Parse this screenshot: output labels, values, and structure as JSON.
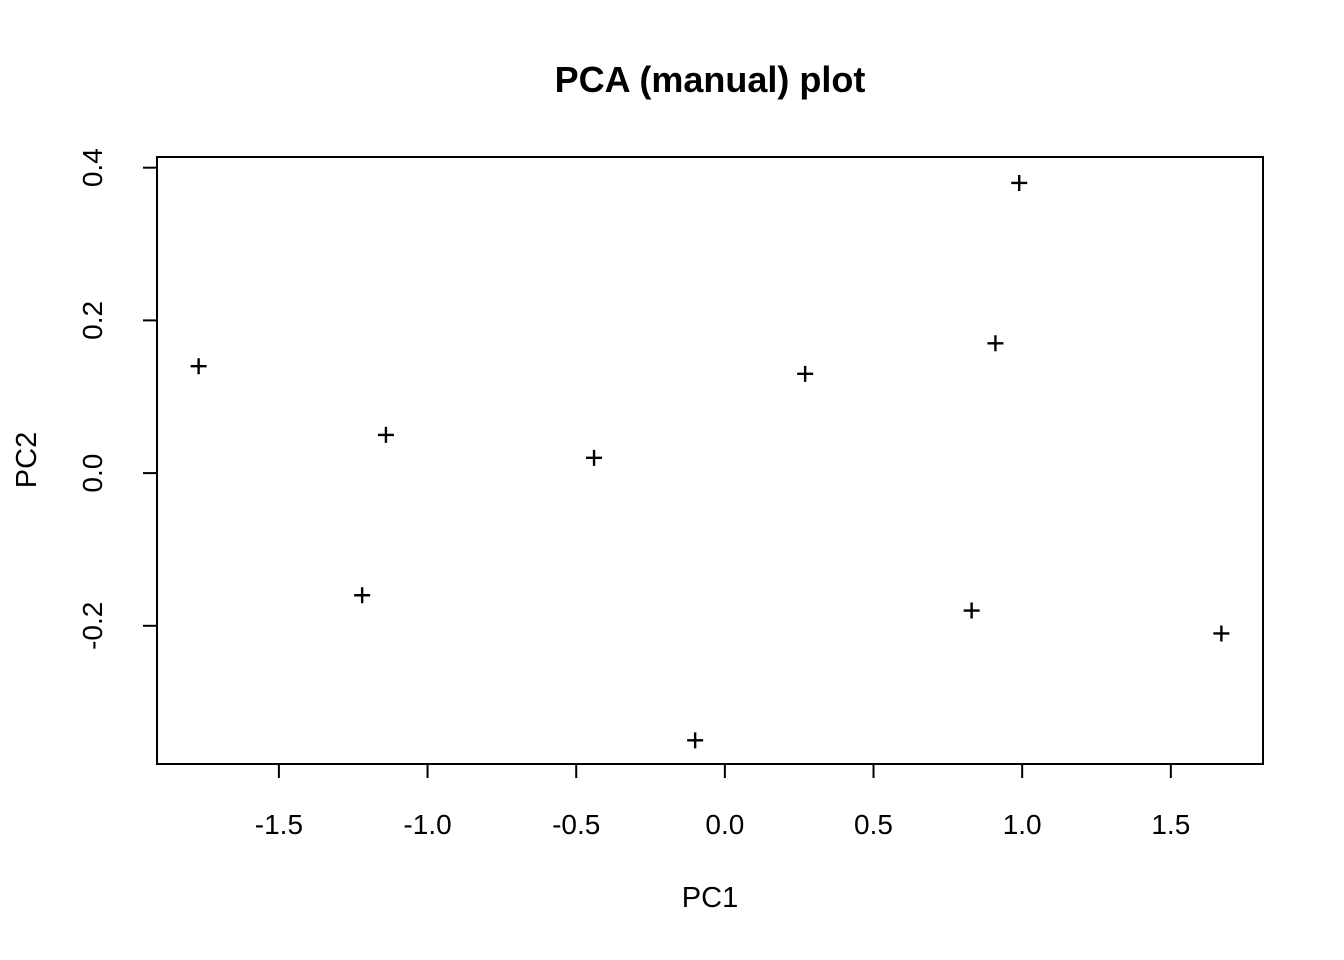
{
  "figure": {
    "background_color": "#ffffff",
    "foreground_color": "#000000"
  },
  "chart_data": {
    "type": "scatter",
    "title": "PCA (manual) plot",
    "xlabel": "PC1",
    "ylabel": "PC2",
    "marker": "plus-sign",
    "marker_color": "#000000",
    "grid": false,
    "legend": null,
    "xlim": [
      -1.91,
      1.81
    ],
    "ylim": [
      -0.381,
      0.414
    ],
    "x_ticks": [
      -1.5,
      -1.0,
      -0.5,
      0.0,
      0.5,
      1.0,
      1.5
    ],
    "x_tick_labels": [
      "-1.5",
      "-1.0",
      "-0.5",
      "0.0",
      "0.5",
      "1.0",
      "1.5"
    ],
    "y_ticks": [
      -0.2,
      0.0,
      0.2,
      0.4
    ],
    "y_tick_labels": [
      "-0.2",
      "0.0",
      "0.2",
      "0.4"
    ],
    "points": [
      {
        "x": -1.77,
        "y": 0.14
      },
      {
        "x": -1.22,
        "y": -0.16
      },
      {
        "x": -1.14,
        "y": 0.05
      },
      {
        "x": -0.44,
        "y": 0.02
      },
      {
        "x": -0.1,
        "y": -0.35
      },
      {
        "x": 0.27,
        "y": 0.13
      },
      {
        "x": 0.83,
        "y": -0.18
      },
      {
        "x": 0.91,
        "y": 0.17
      },
      {
        "x": 0.99,
        "y": 0.38
      },
      {
        "x": 1.67,
        "y": -0.21
      }
    ]
  }
}
